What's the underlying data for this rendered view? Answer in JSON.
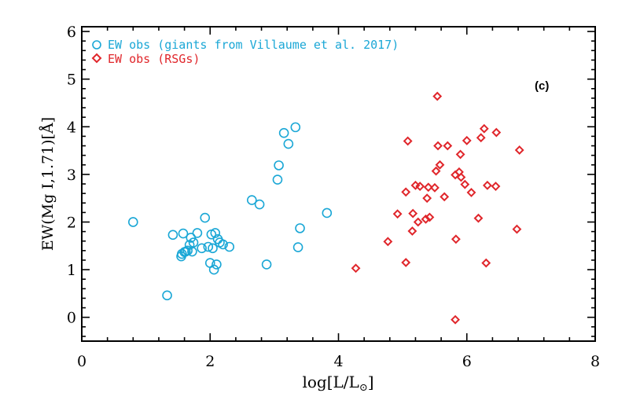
{
  "colors": {
    "giants": "#1aa7d6",
    "rsg": "#e0262b",
    "axis": "#000000"
  },
  "chart_data": {
    "type": "scatter",
    "title": "",
    "xlabel_main": "log[L/L",
    "xlabel_sub": "⊙",
    "xlabel_close": "]",
    "ylabel": "EW(Mg I,1.71)[Å]",
    "annotation": "(c)",
    "xlim": [
      0,
      8
    ],
    "ylim": [
      -0.5,
      6.1
    ],
    "xticks": [
      0,
      2,
      4,
      6,
      8
    ],
    "yticks": [
      0,
      1,
      2,
      3,
      4,
      5,
      6
    ],
    "xtick_labels": [
      "0",
      "2",
      "4",
      "6",
      "8"
    ],
    "ytick_labels": [
      "0",
      "1",
      "2",
      "3",
      "4",
      "5",
      "6"
    ],
    "legend": {
      "placement": "top-left",
      "entries": [
        "EW obs (giants from Villaume et al. 2017)",
        "EW obs (RSGs)"
      ]
    },
    "series": [
      {
        "name": "EW obs (giants from Villaume et al. 2017)",
        "marker": "circle",
        "x": [
          0.8,
          1.33,
          1.42,
          1.55,
          1.56,
          1.58,
          1.6,
          1.62,
          1.65,
          1.68,
          1.7,
          1.72,
          1.74,
          1.8,
          1.87,
          1.92,
          1.97,
          2.0,
          2.02,
          2.04,
          2.06,
          2.08,
          2.1,
          2.12,
          2.15,
          2.2,
          2.3,
          2.65,
          2.77,
          2.88,
          3.05,
          3.07,
          3.15,
          3.22,
          3.33,
          3.37,
          3.4,
          3.82
        ],
        "y": [
          2.0,
          0.46,
          1.73,
          1.28,
          1.33,
          1.76,
          1.37,
          1.38,
          1.4,
          1.52,
          1.67,
          1.38,
          1.57,
          1.77,
          1.45,
          2.09,
          1.48,
          1.14,
          1.74,
          1.45,
          1.0,
          1.77,
          1.11,
          1.64,
          1.57,
          1.53,
          1.48,
          2.46,
          2.37,
          1.11,
          2.89,
          3.19,
          3.87,
          3.64,
          3.99,
          1.47,
          1.87,
          2.19
        ]
      },
      {
        "name": "EW obs (RSGs)",
        "marker": "diamond",
        "x": [
          4.27,
          4.77,
          4.92,
          5.05,
          5.05,
          5.08,
          5.15,
          5.16,
          5.2,
          5.24,
          5.27,
          5.36,
          5.38,
          5.4,
          5.42,
          5.5,
          5.52,
          5.54,
          5.55,
          5.58,
          5.65,
          5.7,
          5.82,
          5.82,
          5.83,
          5.88,
          5.9,
          5.91,
          5.97,
          6.0,
          6.07,
          6.18,
          6.22,
          6.27,
          6.3,
          6.32,
          6.45,
          6.46,
          6.78,
          6.82
        ],
        "y": [
          1.03,
          1.59,
          2.17,
          2.63,
          1.15,
          3.7,
          1.81,
          2.18,
          2.77,
          2.0,
          2.75,
          2.06,
          2.5,
          2.73,
          2.1,
          2.72,
          3.07,
          4.64,
          3.6,
          3.2,
          2.53,
          3.6,
          2.99,
          -0.05,
          1.64,
          3.05,
          3.42,
          2.94,
          2.79,
          3.71,
          2.62,
          2.08,
          3.77,
          3.96,
          1.14,
          2.77,
          2.75,
          3.88,
          1.85,
          3.51
        ]
      }
    ]
  }
}
